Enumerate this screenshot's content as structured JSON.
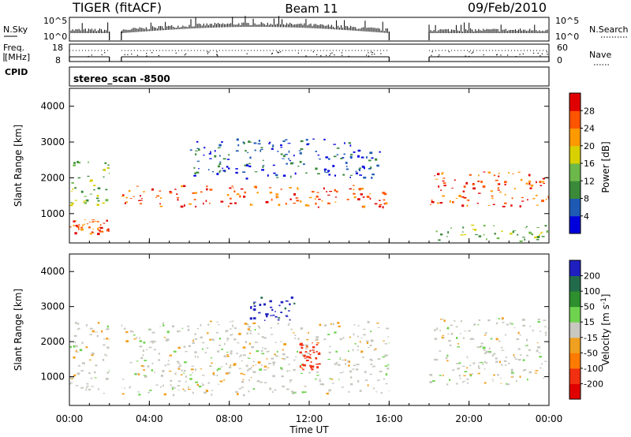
{
  "header": {
    "radar": "TIGER (fitACF)",
    "beam": "Beam 11",
    "date": "09/Feb/2010"
  },
  "status_panels": {
    "nsky_label": "N.Sky",
    "nsearch_label": "N.Search",
    "nsky_ticks": [
      "10^5",
      "10^0"
    ],
    "nsearch_ticks": [
      "10^5",
      "10^0"
    ],
    "freq_label_1": "Freq.",
    "freq_label_2": "[MHz]",
    "freq_ticks": [
      "18",
      "8"
    ],
    "nave_label": "Nave",
    "nave_ticks": [
      "60",
      "0"
    ],
    "cpid_label": "CPID",
    "cpid_value": "stereo_scan -8500"
  },
  "colors": {
    "power_scale": [
      "#0000dd",
      "#1e5ab4",
      "#3a8a3a",
      "#6db84a",
      "#d8d000",
      "#ff9900",
      "#ff5500",
      "#e00000"
    ],
    "velocity_scale": [
      "#1f1fbf",
      "#226b4a",
      "#2d8f2d",
      "#6fd24f",
      "#c8c8c0",
      "#f0a020",
      "#ff7a00",
      "#f03010",
      "#e00000"
    ]
  },
  "chart_data": [
    {
      "type": "heatmap",
      "title": "",
      "xlabel": "Time UT",
      "ylabel": "Slant Range [km]",
      "xlim": [
        0,
        24
      ],
      "ylim": [
        180,
        4500
      ],
      "x_tick_labels": [
        "00:00",
        "04:00",
        "08:00",
        "12:00",
        "16:00",
        "20:00",
        "00:00"
      ],
      "x_ticks": [
        0,
        4,
        8,
        12,
        16,
        20,
        24
      ],
      "y_ticks": [
        1000,
        2000,
        3000,
        4000
      ],
      "data_gaps_hours": [
        [
          2.0,
          2.6
        ],
        [
          16.0,
          18.0
        ]
      ],
      "colorbar": {
        "label": "Power [dB]",
        "ticks": [
          "4",
          "8",
          "12",
          "16",
          "20",
          "24",
          "28"
        ],
        "range": [
          0,
          30
        ]
      },
      "echo_bands": [
        {
          "t": [
            0.0,
            2.0
          ],
          "range_km": [
            450,
            850
          ],
          "value": "high"
        },
        {
          "t": [
            0.0,
            2.0
          ],
          "range_km": [
            1200,
            2500
          ],
          "value": "medium"
        },
        {
          "t": [
            2.6,
            16.0
          ],
          "range_km": [
            1200,
            1800
          ],
          "value": "high"
        },
        {
          "t": [
            6.0,
            15.5
          ],
          "range_km": [
            2000,
            3100
          ],
          "value": "low"
        },
        {
          "t": [
            18.0,
            24.0
          ],
          "range_km": [
            1200,
            2200
          ],
          "value": "high"
        },
        {
          "t": [
            18.0,
            24.0
          ],
          "range_km": [
            250,
            700
          ],
          "value": "medium"
        }
      ]
    },
    {
      "type": "heatmap",
      "title": "",
      "xlabel": "Time UT",
      "ylabel": "Slant Range [km]",
      "xlim": [
        0,
        24
      ],
      "ylim": [
        180,
        4500
      ],
      "x_tick_labels": [
        "00:00",
        "04:00",
        "08:00",
        "12:00",
        "16:00",
        "20:00",
        "00:00"
      ],
      "x_ticks": [
        0,
        4,
        8,
        12,
        16,
        20,
        24
      ],
      "y_ticks": [
        1000,
        2000,
        3000,
        4000
      ],
      "data_gaps_hours": [
        [
          2.0,
          2.6
        ],
        [
          16.0,
          18.0
        ]
      ],
      "colorbar": {
        "label": "Velocity [m s^-1]",
        "ticks": [
          "200",
          "100",
          "50",
          "15",
          "-15",
          "-50",
          "-100",
          "-200"
        ],
        "range": [
          -250,
          250
        ]
      },
      "echo_bands": [
        {
          "t": [
            0.0,
            16.0
          ],
          "range_km": [
            500,
            2600
          ],
          "value": "near zero"
        },
        {
          "t": [
            9.0,
            11.5
          ],
          "range_km": [
            2600,
            3300
          ],
          "value": "positive"
        },
        {
          "t": [
            11.5,
            12.5
          ],
          "range_km": [
            1200,
            2000
          ],
          "value": "negative"
        },
        {
          "t": [
            18.0,
            24.0
          ],
          "range_km": [
            800,
            2700
          ],
          "value": "near zero"
        }
      ]
    }
  ]
}
